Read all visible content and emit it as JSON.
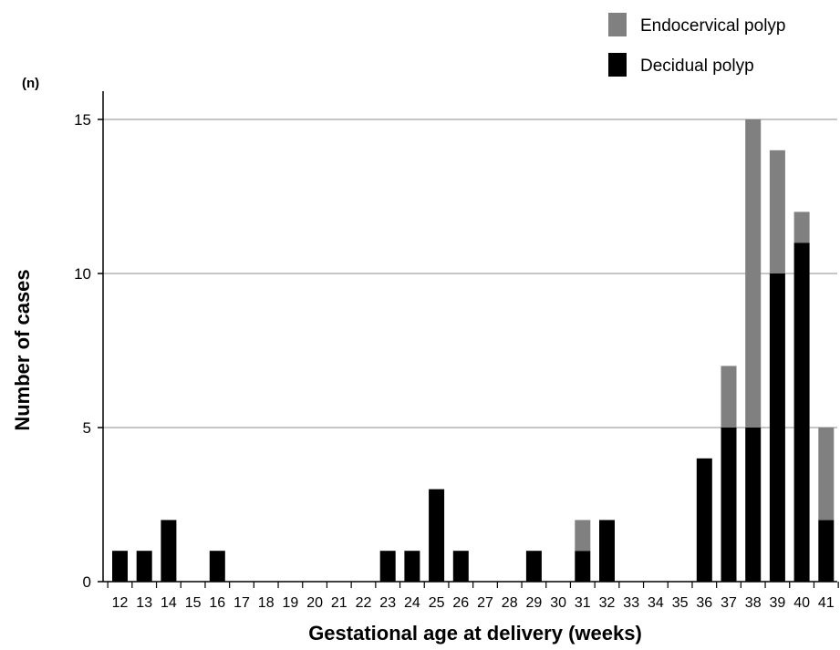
{
  "chart_data": {
    "type": "bar",
    "stacked": true,
    "unit_label": "(n)",
    "xlabel": "Gestational age at delivery (weeks)",
    "ylabel": "Number of cases",
    "ylim": [
      0,
      15
    ],
    "yticks": [
      0,
      5,
      10,
      15
    ],
    "grid": true,
    "legend_position": "top-right",
    "categories": [
      "12",
      "13",
      "14",
      "15",
      "16",
      "17",
      "18",
      "19",
      "20",
      "21",
      "22",
      "23",
      "24",
      "25",
      "26",
      "27",
      "28",
      "29",
      "30",
      "31",
      "32",
      "33",
      "34",
      "35",
      "36",
      "37",
      "38",
      "39",
      "40",
      "41"
    ],
    "series": [
      {
        "name": "Decidual polyp",
        "color": "#000000",
        "values": [
          1,
          1,
          2,
          0,
          1,
          0,
          0,
          0,
          0,
          0,
          0,
          1,
          1,
          3,
          1,
          0,
          0,
          1,
          0,
          1,
          2,
          0,
          0,
          0,
          4,
          5,
          5,
          10,
          11,
          2
        ]
      },
      {
        "name": "Endocervical polyp",
        "color": "#808080",
        "values": [
          0,
          0,
          0,
          0,
          0,
          0,
          0,
          0,
          0,
          0,
          0,
          0,
          0,
          0,
          0,
          0,
          0,
          0,
          0,
          1,
          0,
          0,
          0,
          0,
          0,
          2,
          10,
          4,
          1,
          3
        ]
      }
    ]
  }
}
